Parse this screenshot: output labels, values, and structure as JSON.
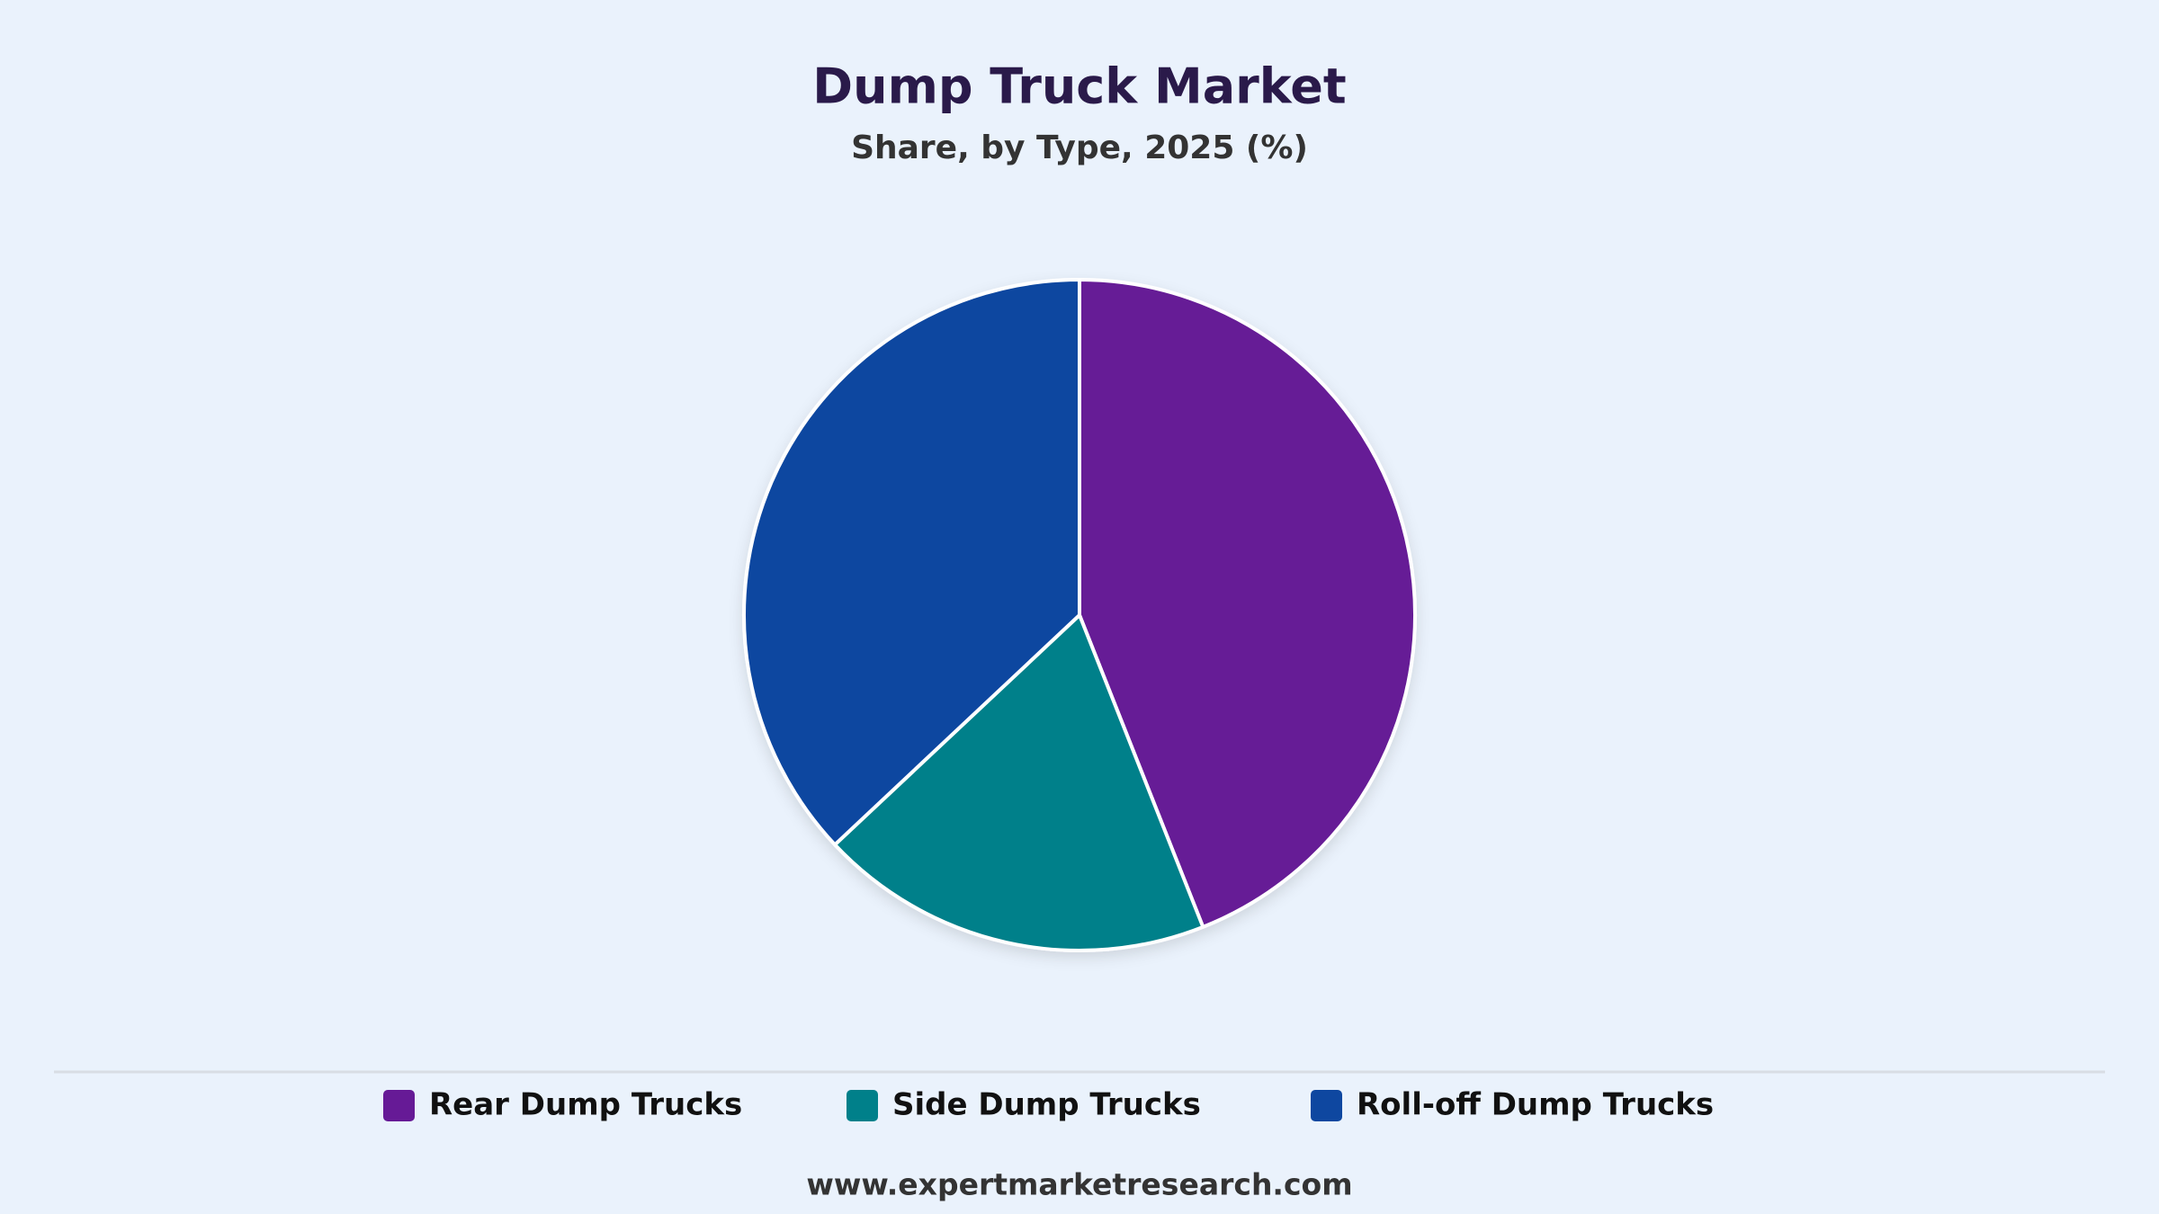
{
  "chart_data": {
    "type": "pie",
    "title": "Dump Truck Market",
    "subtitle": "Share, by Type, 2025 (%)",
    "categories": [
      "Rear Dump Trucks",
      "Side Dump Trucks",
      "Roll-off Dump Trucks"
    ],
    "values": [
      44,
      19,
      37
    ],
    "colors": [
      "#661a96",
      "#00808a",
      "#0e47a0"
    ],
    "source": "www.expertmarketresearch.com"
  }
}
